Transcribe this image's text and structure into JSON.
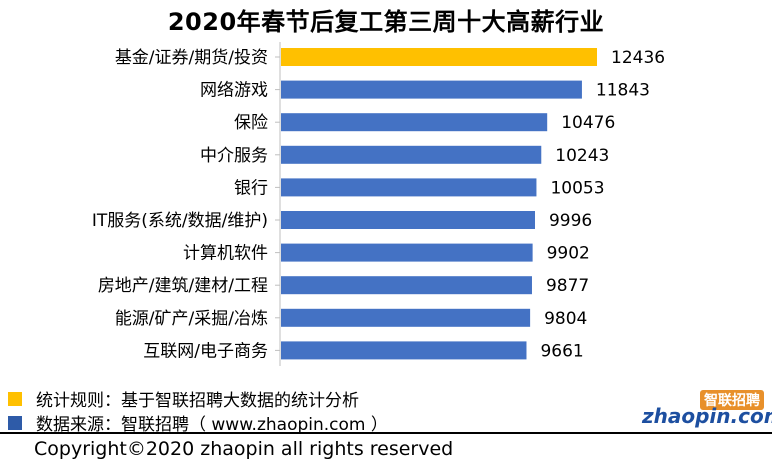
{
  "chart_data": {
    "type": "bar",
    "orientation": "horizontal",
    "title": "2020年春节后复工第三周十大高薪行业",
    "categories": [
      "基金/证券/期货/投资",
      "网络游戏",
      "保险",
      "中介服务",
      "银行",
      "IT服务(系统/数据/维护)",
      "计算机软件",
      "房地产/建筑/建材/工程",
      "能源/矿产/采掘/冶炼",
      "互联网/电子商务"
    ],
    "values": [
      12436,
      11843,
      10476,
      10243,
      10053,
      9996,
      9902,
      9877,
      9804,
      9661
    ],
    "highlight_index": 0,
    "colors": {
      "highlight": "#FFC000",
      "default": "#4472C4"
    },
    "grid": false,
    "xaxis_visible": false
  },
  "legend": [
    {
      "color": "#FFC000",
      "text": "统计规则：基于智联招聘大数据的统计分析"
    },
    {
      "color": "#2E5BA8",
      "text": "数据来源：智联招聘（ www.zhaopin.com ）"
    }
  ],
  "logo": {
    "cn": "智联招聘",
    "en": "zhaopin.com"
  },
  "footer": {
    "copyright": "Copyright©2020 zhaopin all rights reserved"
  }
}
